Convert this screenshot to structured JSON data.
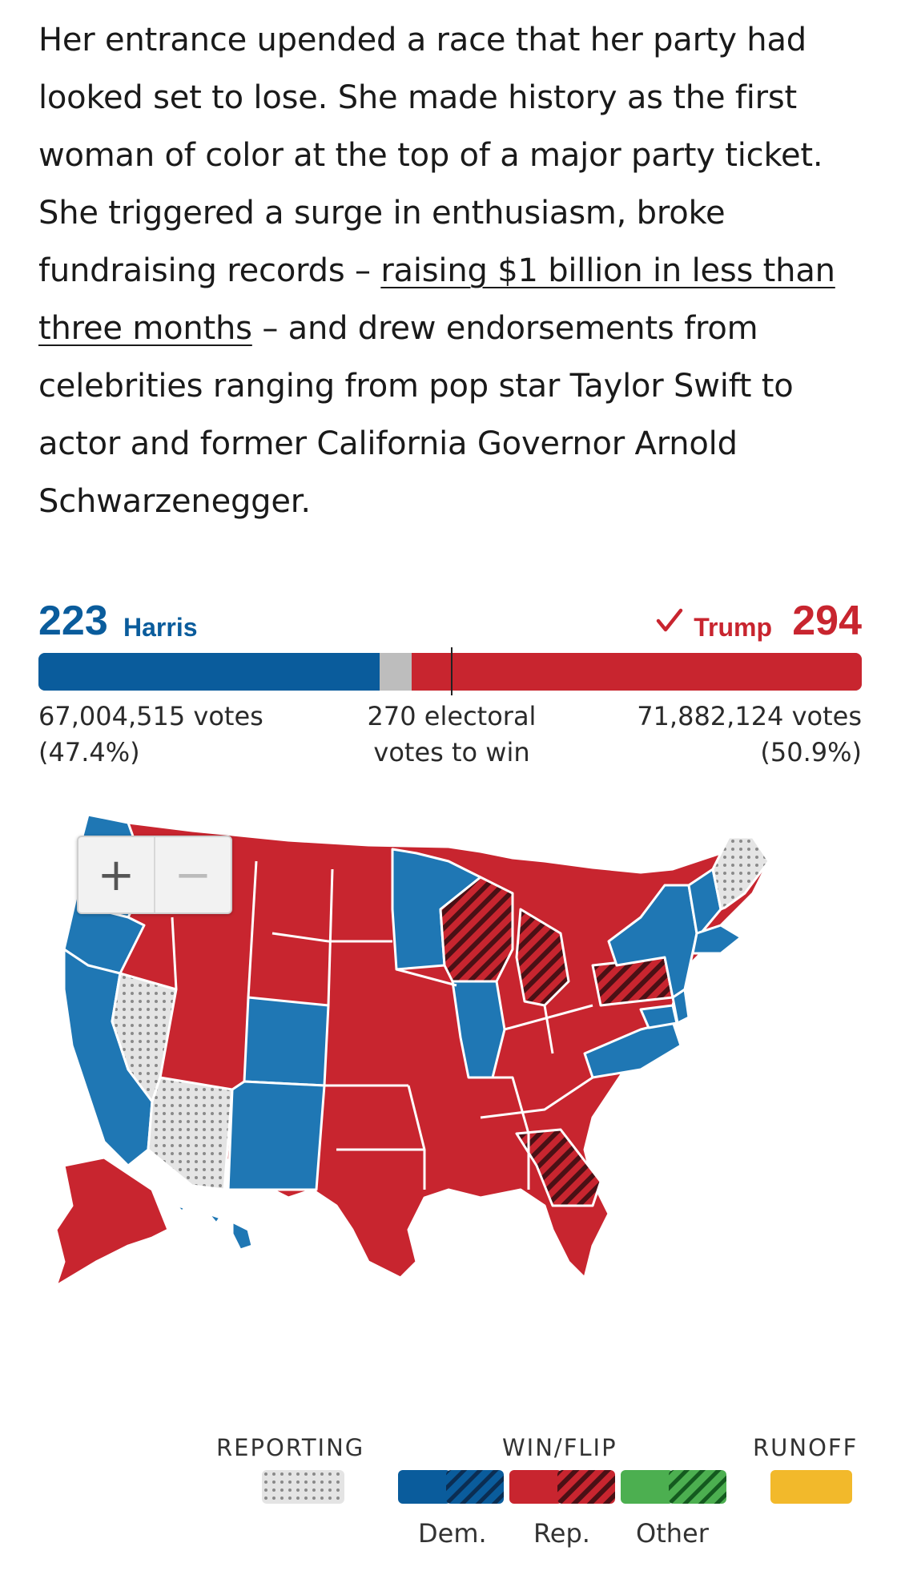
{
  "article": {
    "line1": "Her entrance upended a race that her party had",
    "line2": "looked set to lose. She made history as the first",
    "line3": "woman of color at the top of a major party ticket.",
    "line4": "She triggered a surge in enthusiasm, broke",
    "line5_pre": "fundraising records – ",
    "link_part1": "raising $1 billion in less than",
    "link_part2": "three months",
    "line6_post": " – and drew endorsements from",
    "line7": "celebrities ranging from pop star Taylor Swift to",
    "line8": "actor and former California Governor Arnold",
    "line9": "Schwarzenegger."
  },
  "results": {
    "dem": {
      "electoral_votes": "223",
      "name": "Harris",
      "votes": "67,004,515 votes",
      "pct": "(47.4%)",
      "ev_share": 0.4145
    },
    "rep": {
      "electoral_votes": "294",
      "name": "Trump",
      "votes": "71,882,124 votes",
      "pct": "(50.9%)",
      "ev_share": 0.5465,
      "winner": true
    },
    "threshold_line1": "270 electoral",
    "threshold_line2": "votes to win"
  },
  "map": {
    "zoom_in": "+",
    "zoom_out": "−"
  },
  "legend": {
    "reporting": "REPORTING",
    "win_flip": "WIN/FLIP",
    "runoff": "RUNOFF",
    "dem": "Dem.",
    "rep": "Rep.",
    "other": "Other"
  },
  "colors": {
    "dem": "#1f77b4",
    "dem_dark": "#0a5c9c",
    "rep": "#c8252f",
    "other": "#4caf50",
    "runoff": "#f2b92b",
    "reporting": "#d6d6d6"
  }
}
